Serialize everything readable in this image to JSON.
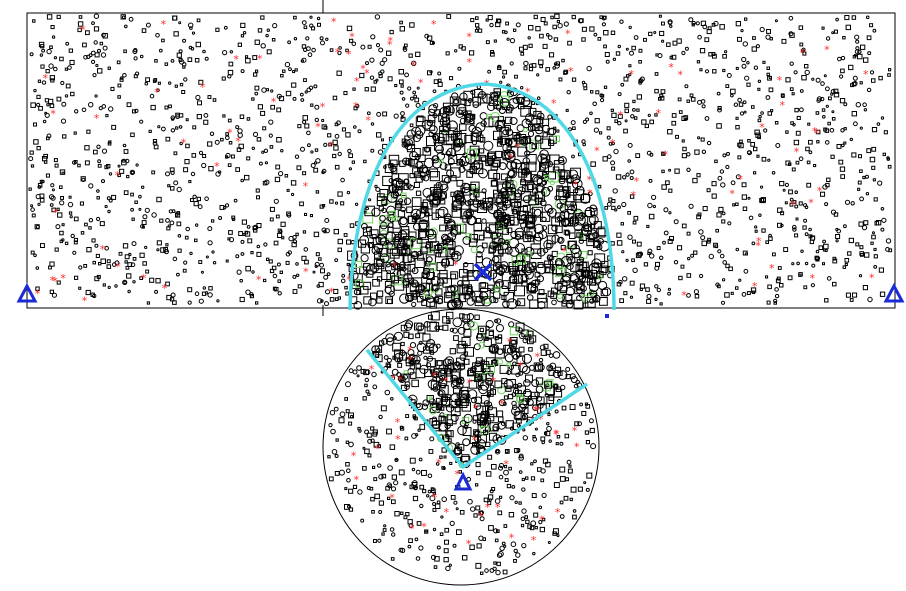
{
  "figure": {
    "background": "#ffffff",
    "colors": {
      "outline": "#000000",
      "symbols": "#000000",
      "crack_front": "#4fd8e6",
      "support": "#1a2bd6",
      "load_marker": "#1a2bd6",
      "damaged_point": "#ff2a2a",
      "highlight_point": "#6ed85a"
    },
    "icons": {
      "left_support": "triangle-support-icon",
      "right_support": "triangle-support-icon",
      "bottom_support": "triangle-support-icon",
      "load_point": "x-cross-icon",
      "damaged_point": "red-asterisk-icon"
    }
  }
}
